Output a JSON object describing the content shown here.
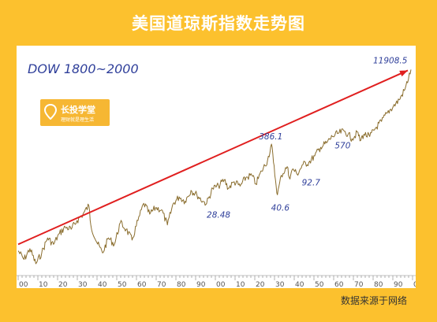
{
  "page": {
    "title": "美国道琼斯指数走势图",
    "source": "数据来源于网络"
  },
  "logo": {
    "name": "长投学堂",
    "slogan": "理财就是理生活"
  },
  "colors": {
    "background": "#fcc12e",
    "series": "#8a6d2d",
    "trend_arrow": "#e01f1f",
    "label_text": "#2f3f9a"
  },
  "chart_data": {
    "type": "line",
    "title": "DOW 1800~2000",
    "xlabel": "",
    "ylabel": "",
    "xlim": [
      1800,
      2000
    ],
    "x_tick_labels": [
      "00",
      "10",
      "20",
      "30",
      "40",
      "50",
      "60",
      "70",
      "80",
      "90",
      "00",
      "10",
      "20",
      "30",
      "40",
      "50",
      "60",
      "70",
      "80",
      "90",
      "0"
    ],
    "annotations": [
      {
        "text": "28.48",
        "x": 1896
      },
      {
        "text": "386.1",
        "x": 1929
      },
      {
        "text": "40.6",
        "x": 1932
      },
      {
        "text": "92.7",
        "x": 1942
      },
      {
        "text": "570",
        "x": 1966
      },
      {
        "text": "11908.5",
        "x": 2000
      }
    ],
    "trend_line": {
      "from_x": 1800,
      "to_x": 2000
    },
    "series": [
      {
        "x": [
          1800,
          1803,
          1806,
          1809,
          1812,
          1815,
          1818,
          1821,
          1824,
          1827,
          1830,
          1833,
          1836,
          1837,
          1840,
          1843,
          1846,
          1849,
          1852,
          1855,
          1858,
          1861,
          1864,
          1867,
          1870,
          1873,
          1876,
          1879,
          1882,
          1885,
          1888,
          1891,
          1894,
          1896,
          1899,
          1902,
          1905,
          1907,
          1910,
          1913,
          1916,
          1919,
          1921,
          1924,
          1927,
          1929,
          1930,
          1931,
          1932,
          1934,
          1937,
          1938,
          1940,
          1942,
          1945,
          1948,
          1951,
          1954,
          1957,
          1960,
          1963,
          1966,
          1968,
          1970,
          1973,
          1974,
          1976,
          1979,
          1982,
          1985,
          1988,
          1991,
          1994,
          1997,
          2000
        ],
        "y": [
          1.0,
          0.6,
          1.1,
          0.4,
          0.9,
          1.6,
          1.3,
          1.8,
          2.1,
          2.0,
          2.4,
          2.7,
          3.1,
          2.2,
          1.4,
          0.9,
          1.6,
          1.3,
          2.3,
          2.0,
          1.5,
          2.4,
          3.2,
          2.7,
          3.0,
          2.9,
          2.2,
          3.2,
          3.5,
          3.3,
          3.8,
          3.6,
          3.3,
          3.2,
          3.9,
          4.0,
          4.3,
          3.9,
          4.2,
          4.0,
          4.4,
          4.5,
          4.1,
          4.7,
          5.2,
          5.95,
          5.1,
          4.3,
          3.6,
          4.5,
          4.9,
          4.4,
          4.8,
          4.55,
          5.0,
          5.1,
          5.4,
          5.8,
          6.0,
          6.3,
          6.45,
          6.55,
          6.4,
          6.2,
          6.5,
          6.1,
          6.4,
          6.3,
          6.7,
          7.0,
          7.4,
          7.7,
          8.0,
          8.5,
          9.4
        ]
      }
    ]
  }
}
